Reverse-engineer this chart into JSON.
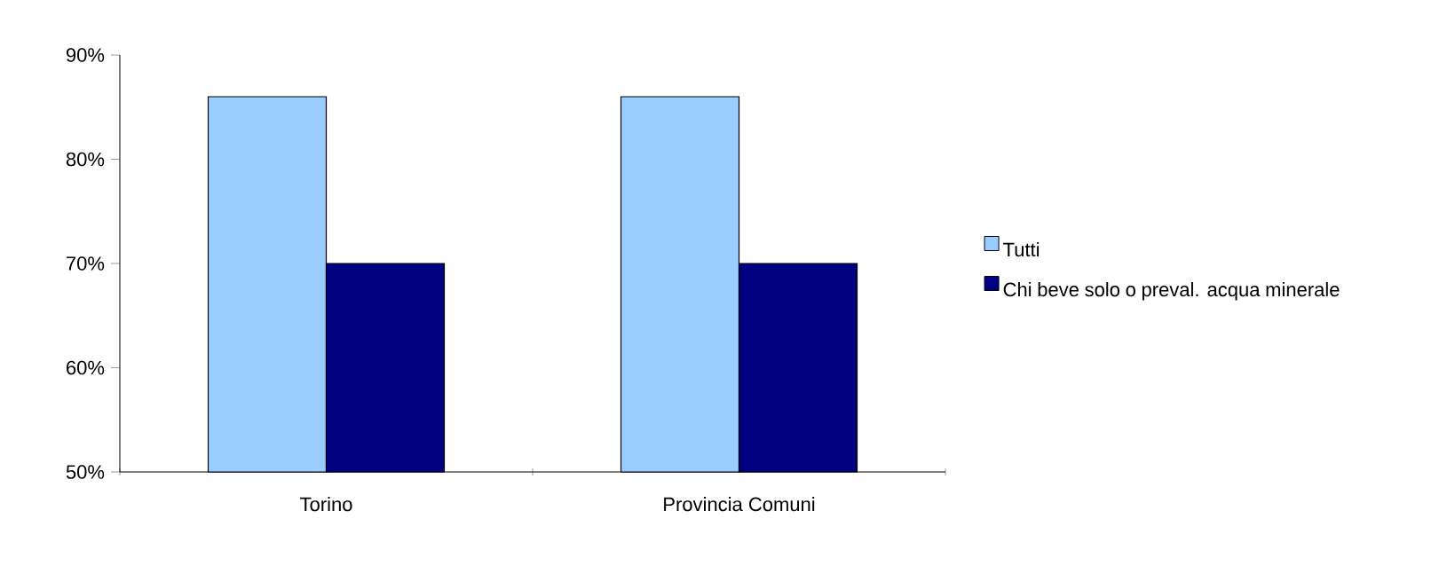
{
  "chart_data": {
    "type": "bar",
    "categories": [
      "Torino",
      "Provincia Comuni"
    ],
    "series": [
      {
        "name": "Tutti",
        "color": "#99ccff",
        "values": [
          86,
          86
        ]
      },
      {
        "name": "Chi beve solo o preval. acqua minerale",
        "color": "#000080",
        "values": [
          70,
          70
        ]
      }
    ],
    "ylim": [
      50,
      90
    ],
    "yticks": [
      {
        "value": 50,
        "label": "50%"
      },
      {
        "value": 60,
        "label": "60%"
      },
      {
        "value": 70,
        "label": "70%"
      },
      {
        "value": 80,
        "label": "80%"
      },
      {
        "value": 90,
        "label": "90%"
      }
    ],
    "legend": "right"
  }
}
